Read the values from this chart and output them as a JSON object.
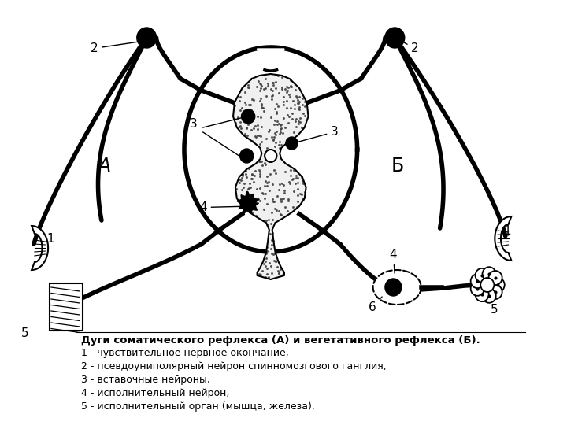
{
  "title": "Дуги соматического рефлекса (А) и вегетативного рефлекса (Б).",
  "legend_lines": [
    "1 - чувствительное нервное окончание,",
    "2 - псевдоуниполярный нейрон спинномозгового ганглия,",
    "3 - вставочные нейроны,",
    "4 - исполнительный нейрон,",
    "5 - исполнительный орган (мышца, железа),"
  ],
  "bg_color": "#ffffff",
  "fg_color": "#000000",
  "label_A": "А",
  "label_B": "Б"
}
